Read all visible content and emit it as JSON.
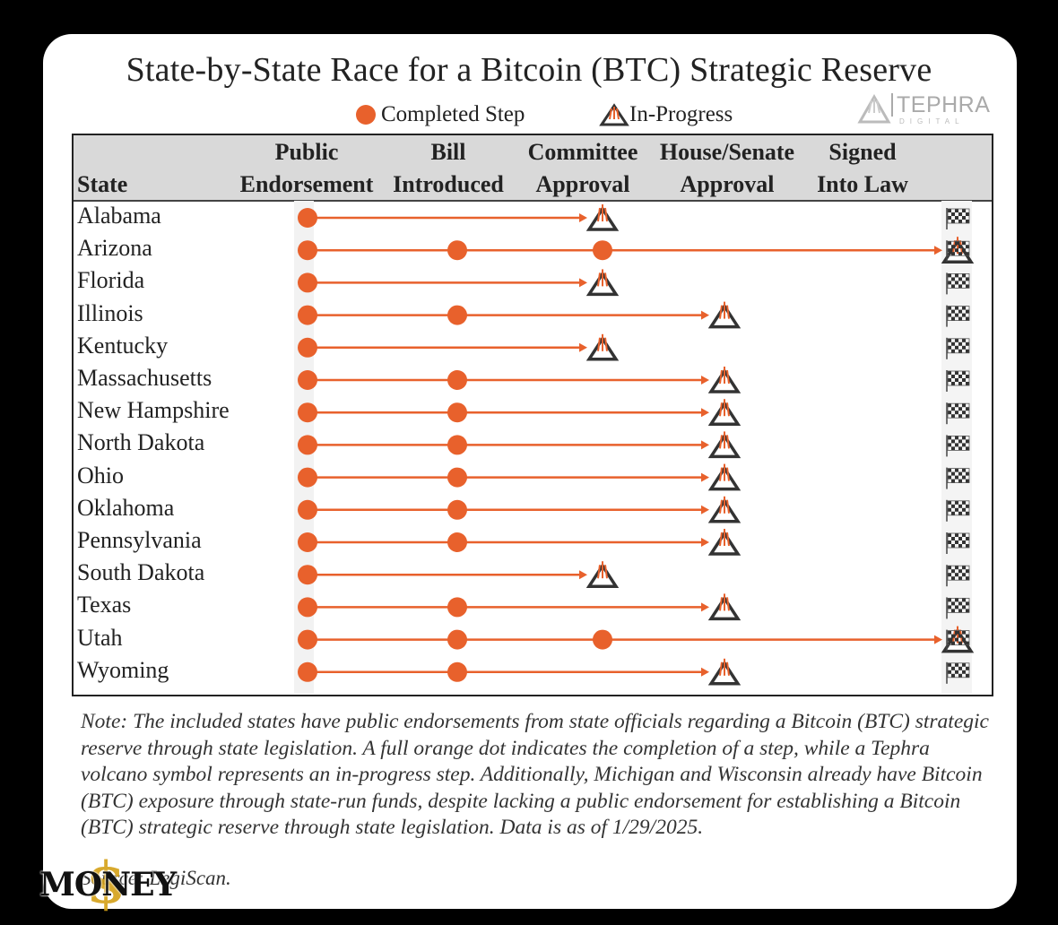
{
  "title": "State-by-State Race for a Bitcoin (BTC) Strategic Reserve",
  "legend": {
    "completed": "Completed Step",
    "in_progress": "In-Progress"
  },
  "logo": {
    "name": "TEPHRA",
    "sub": "DIGITAL"
  },
  "colors": {
    "accent": "#e8612c",
    "volcano": "#333333",
    "flag": "#444444"
  },
  "chart_data": {
    "type": "table",
    "stages": [
      {
        "line1": "Public",
        "line2": "Endorsement"
      },
      {
        "line1": "Bill",
        "line2": "Introduced"
      },
      {
        "line1": "Committee",
        "line2": "Approval"
      },
      {
        "line1": "House/Senate",
        "line2": "Approval"
      },
      {
        "line1": "Signed",
        "line2": "Into Law"
      }
    ],
    "state_header": "State",
    "rows": [
      {
        "state": "Alabama",
        "completed": 1,
        "in_progress": 2
      },
      {
        "state": "Arizona",
        "completed": 3,
        "in_progress": 4
      },
      {
        "state": "Florida",
        "completed": 1,
        "in_progress": 2
      },
      {
        "state": "Illinois",
        "completed": 2,
        "in_progress": 3
      },
      {
        "state": "Kentucky",
        "completed": 1,
        "in_progress": 2
      },
      {
        "state": "Massachusetts",
        "completed": 2,
        "in_progress": 3
      },
      {
        "state": "New Hampshire",
        "completed": 2,
        "in_progress": 3
      },
      {
        "state": "North Dakota",
        "completed": 2,
        "in_progress": 3
      },
      {
        "state": "Ohio",
        "completed": 2,
        "in_progress": 3
      },
      {
        "state": "Oklahoma",
        "completed": 2,
        "in_progress": 3
      },
      {
        "state": "Pennsylvania",
        "completed": 2,
        "in_progress": 3
      },
      {
        "state": "South Dakota",
        "completed": 1,
        "in_progress": 2
      },
      {
        "state": "Texas",
        "completed": 2,
        "in_progress": 3
      },
      {
        "state": "Utah",
        "completed": 3,
        "in_progress": 4
      },
      {
        "state": "Wyoming",
        "completed": 2,
        "in_progress": 3
      }
    ]
  },
  "note": "Note: The included states have public endorsements from state officials regarding a Bitcoin (BTC) strategic reserve through state legislation. A full orange dot indicates the completion of a step, while a Tephra volcano symbol represents an in-progress step. Additionally, Michigan and Wisconsin already have Bitcoin (BTC) exposure through state-run funds, despite lacking a public endorsement for establishing a Bitcoin (BTC) strategic reserve through state legislation. Data is as of 1/29/2025.",
  "source": "Source: LegiScan.",
  "watermark": "MONEY"
}
